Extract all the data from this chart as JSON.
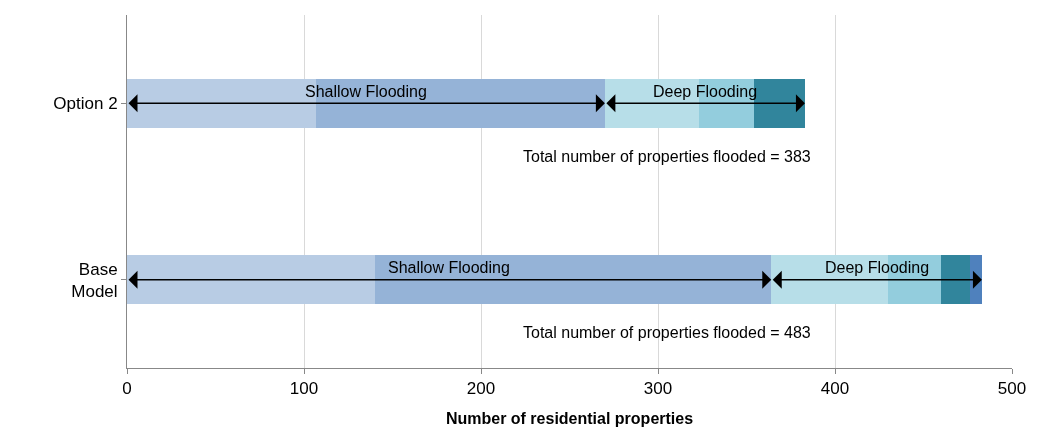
{
  "chart_data": {
    "type": "bar",
    "orientation": "horizontal",
    "stacked": true,
    "categories": [
      "Option 2",
      "Base\nModel"
    ],
    "series": [
      {
        "color": "#b8cce4",
        "values": [
          107,
          140
        ]
      },
      {
        "color": "#95b3d7",
        "values": [
          163,
          224
        ]
      },
      {
        "color": "#b7dee8",
        "values": [
          53,
          66
        ]
      },
      {
        "color": "#93cddd",
        "values": [
          31,
          30
        ]
      },
      {
        "color": "#31859c",
        "values": [
          29,
          16
        ]
      },
      {
        "color": "#4f81bd",
        "values": [
          0,
          7
        ]
      }
    ],
    "xlabel": "Number of residential properties",
    "xlim": [
      0,
      500
    ],
    "xticks": [
      0,
      100,
      200,
      300,
      400,
      500
    ],
    "grid": "x",
    "annotations": [
      "Shallow Flooding",
      "Deep Flooding",
      "Shallow Flooding",
      "Deep Flooding",
      "Total number of properties flooded = 383",
      "Total number of properties flooded = 483"
    ]
  }
}
